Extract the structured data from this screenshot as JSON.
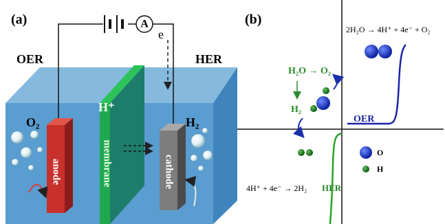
{
  "panel_a": {
    "label": "(a)",
    "ammeter": "A",
    "left_reaction": "OER",
    "right_reaction": "HER",
    "electron": "e",
    "anode_gas": "O₂",
    "proton": "H⁺",
    "cathode_gas": "H₂",
    "anode": "anode",
    "membrane": "membrane",
    "cathode": "cathode"
  },
  "panel_b": {
    "label": "(b)",
    "oer_equation": "2H₂O → 4H⁺ + 4e⁻ + O₂",
    "water_to_oxygen": "H₂O → O₂",
    "hydrogen": "H₂",
    "oer_curve_label": "OER",
    "her_equation": "4H⁺ + 4e⁻ → 2H₂",
    "her_curve_label": "HER",
    "legend_oxygen": "O",
    "legend_hydrogen": "H"
  }
}
